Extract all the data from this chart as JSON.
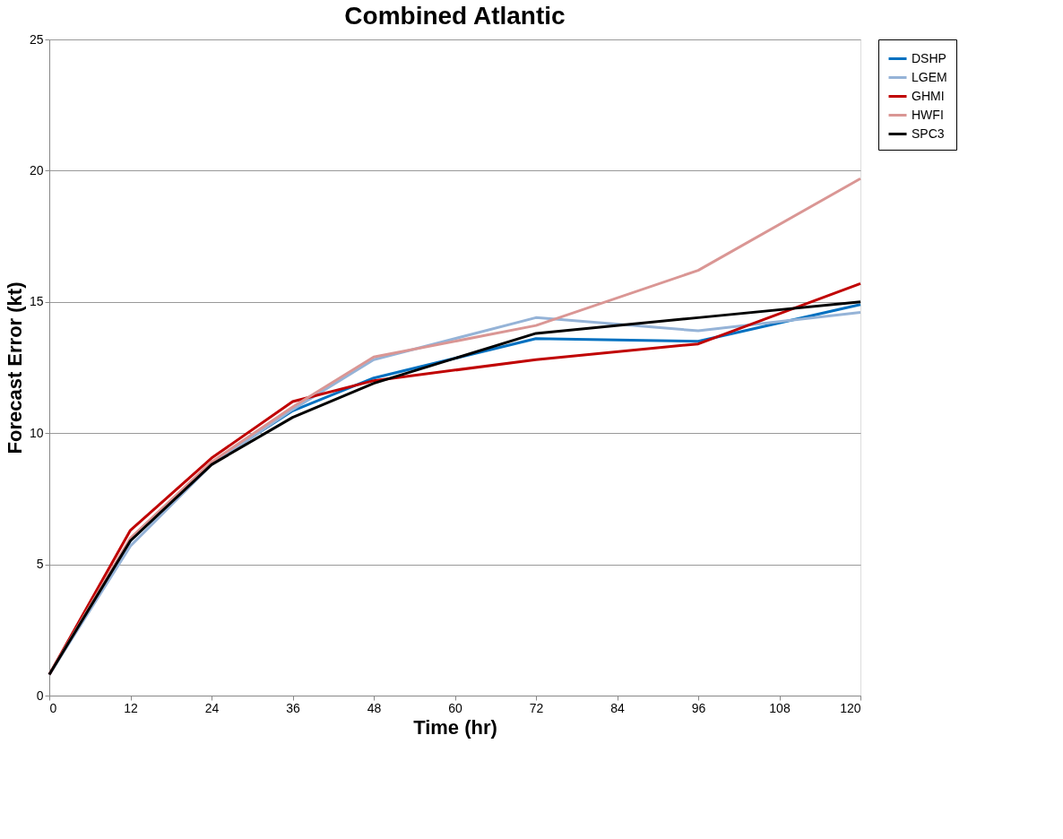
{
  "chart_data": {
    "type": "line",
    "title": "Combined Atlantic",
    "xlabel": "Time (hr)",
    "ylabel": "Forecast Error (kt)",
    "x": [
      0,
      12,
      24,
      36,
      48,
      72,
      96,
      120
    ],
    "xlim": [
      0,
      120
    ],
    "xticks": [
      0,
      12,
      24,
      36,
      48,
      60,
      72,
      84,
      96,
      108,
      120
    ],
    "ylim": [
      0,
      25
    ],
    "yticks": [
      0,
      5,
      10,
      15,
      20,
      25
    ],
    "grid": "y",
    "legend": "right",
    "marker": "none",
    "line_style": "solid",
    "series": [
      {
        "name": "DSHP",
        "color": "#0070c0",
        "values": [
          0.8,
          5.9,
          8.85,
          10.85,
          12.1,
          13.6,
          13.5,
          14.9
        ]
      },
      {
        "name": "LGEM",
        "color": "#95b3d7",
        "values": [
          0.8,
          5.7,
          8.8,
          10.9,
          12.8,
          14.4,
          13.9,
          14.6
        ]
      },
      {
        "name": "GHMI",
        "color": "#c00000",
        "values": [
          0.8,
          6.3,
          9.05,
          11.2,
          12.0,
          12.8,
          13.4,
          15.7
        ]
      },
      {
        "name": "HWFI",
        "color": "#da9694",
        "values": [
          0.8,
          6.0,
          8.9,
          11.0,
          12.9,
          14.1,
          16.2,
          19.7
        ]
      },
      {
        "name": "SPC3",
        "color": "#000000",
        "values": [
          0.8,
          5.9,
          8.8,
          10.6,
          11.9,
          13.8,
          14.4,
          15.0
        ]
      }
    ]
  }
}
